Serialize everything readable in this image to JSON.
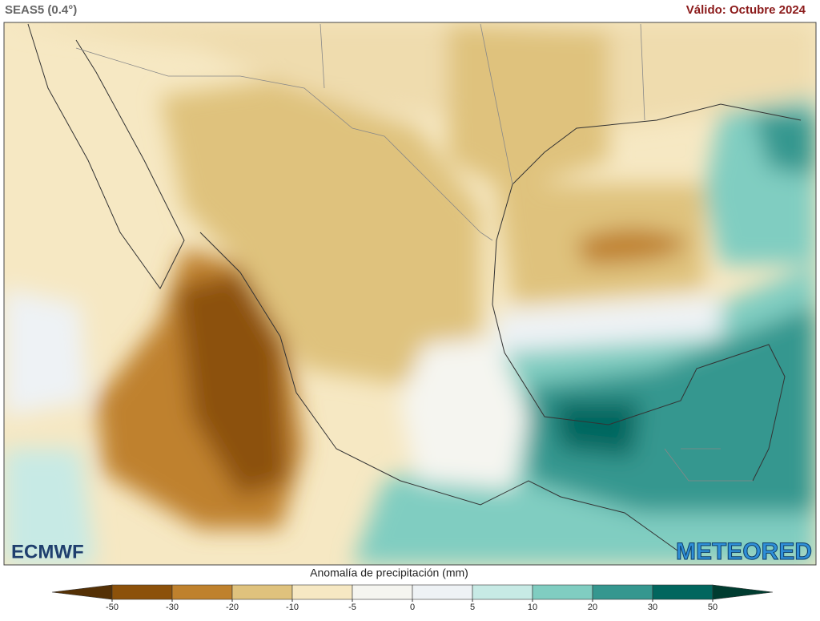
{
  "header": {
    "model": "SEAS5 (0.4°)",
    "valid": "Válido: Octubre 2024"
  },
  "logos": {
    "left": "ECMWF",
    "right": "METEORED"
  },
  "colorbar": {
    "title": "Anomalía de precipitación (mm)",
    "ticks": [
      -50,
      -30,
      -20,
      -10,
      -5,
      0,
      5,
      10,
      20,
      30,
      50
    ],
    "colors": [
      "#543005",
      "#8c510a",
      "#bf812d",
      "#dfc27d",
      "#f6e8c3",
      "#f5f5f0",
      "#eef2f5",
      "#c7eae5",
      "#80cdc1",
      "#35978f",
      "#01665e",
      "#003c30"
    ]
  }
}
